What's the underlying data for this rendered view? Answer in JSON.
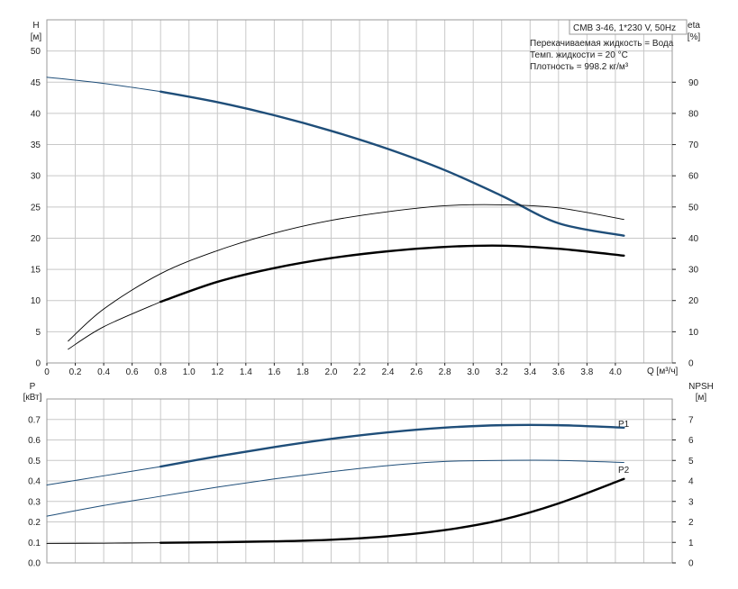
{
  "colors": {
    "blue": "#1f4e79",
    "black": "#000000",
    "grid": "#c8c8c8"
  },
  "header": {
    "info_title": "CMB 3-46, 1*230 V, 50Hz",
    "info_lines": [
      "Перекачиваемая жидкость = Вода",
      "Темп. жидкости = 20 °C",
      "Плотность = 998.2 кг/м³"
    ]
  },
  "chart_data": [
    {
      "type": "line",
      "ylabel_left": "H",
      "ylabel_left_unit": "[м]",
      "ylabel_right": "eta",
      "ylabel_right_unit": "[%]",
      "xlabel": "Q [м³/ч]",
      "xlim": [
        0,
        4.4
      ],
      "ylim_left": [
        0,
        55
      ],
      "ylim_right": [
        0,
        110
      ],
      "x_ticks": [
        "0",
        "0.2",
        "0.4",
        "0.6",
        "0.8",
        "1.0",
        "1.2",
        "1.4",
        "1.6",
        "1.8",
        "2.0",
        "2.2",
        "2.4",
        "2.6",
        "2.8",
        "3.0",
        "3.2",
        "3.4",
        "3.6",
        "3.8",
        "4.0"
      ],
      "y_ticks_left": [
        "0",
        "5",
        "10",
        "15",
        "20",
        "25",
        "30",
        "35",
        "40",
        "45",
        "50"
      ],
      "y_ticks_right": [
        "0",
        "10",
        "20",
        "30",
        "40",
        "50",
        "60",
        "70",
        "80",
        "90"
      ],
      "grid": true,
      "series": [
        {
          "axis": "left",
          "color": "blue",
          "width": 1,
          "name": "",
          "x": [
            0,
            0.4,
            0.8
          ],
          "y": [
            45.8,
            44.8,
            43.5
          ]
        },
        {
          "axis": "left",
          "color": "blue",
          "width": 2.4,
          "name": "",
          "x": [
            0.8,
            1.2,
            1.6,
            2.0,
            2.4,
            2.8,
            3.2,
            3.6,
            4.06
          ],
          "y": [
            43.5,
            41.8,
            39.7,
            37.2,
            34.3,
            30.9,
            26.8,
            22.4,
            20.4
          ]
        },
        {
          "axis": "right",
          "color": "black",
          "width": 0.9,
          "name": "",
          "x": [
            0.15,
            0.4,
            0.8,
            1.2,
            1.6,
            2.0,
            2.4,
            2.8,
            3.2,
            3.6,
            4.06
          ],
          "y": [
            7.0,
            17.3,
            28.6,
            36.0,
            41.6,
            45.7,
            48.5,
            50.4,
            50.7,
            49.7,
            46.0
          ]
        },
        {
          "axis": "left",
          "color": "black",
          "width": 0.9,
          "name": "",
          "x": [
            0.15,
            0.4,
            0.8
          ],
          "y": [
            2.2,
            5.8,
            9.8
          ]
        },
        {
          "axis": "left",
          "color": "black",
          "width": 2.4,
          "name": "",
          "x": [
            0.8,
            1.2,
            1.6,
            2.0,
            2.4,
            2.8,
            3.2,
            3.6,
            4.06
          ],
          "y": [
            9.8,
            13.0,
            15.2,
            16.8,
            17.9,
            18.6,
            18.8,
            18.3,
            17.2
          ]
        }
      ]
    },
    {
      "type": "line",
      "ylabel_left": "P",
      "ylabel_left_unit": "[кВт]",
      "ylabel_right": "NPSH",
      "ylabel_right_unit": "[м]",
      "xlim": [
        0,
        4.4
      ],
      "ylim_left": [
        0,
        0.8
      ],
      "ylim_right": [
        0,
        8
      ],
      "y_ticks_left": [
        "0.0",
        "0.1",
        "0.2",
        "0.3",
        "0.4",
        "0.5",
        "0.6",
        "0.7"
      ],
      "y_ticks_right": [
        "0",
        "1",
        "2",
        "3",
        "4",
        "5",
        "6",
        "7"
      ],
      "grid": true,
      "series": [
        {
          "axis": "left",
          "color": "blue",
          "width": 1,
          "name": "",
          "x": [
            0,
            0.4,
            0.8
          ],
          "y": [
            0.38,
            0.425,
            0.47
          ]
        },
        {
          "axis": "left",
          "color": "blue",
          "width": 2.4,
          "name": "P1",
          "x": [
            0.8,
            1.2,
            1.6,
            2.0,
            2.4,
            2.8,
            3.2,
            3.6,
            4.06
          ],
          "y": [
            0.47,
            0.52,
            0.565,
            0.605,
            0.637,
            0.66,
            0.672,
            0.672,
            0.66
          ]
        },
        {
          "axis": "left",
          "color": "blue",
          "width": 1,
          "name": "P2",
          "x": [
            0,
            0.4,
            0.8,
            1.2,
            1.6,
            2.0,
            2.4,
            2.8,
            3.2,
            3.6,
            4.06
          ],
          "y": [
            0.228,
            0.28,
            0.325,
            0.37,
            0.41,
            0.445,
            0.475,
            0.495,
            0.5,
            0.5,
            0.49
          ]
        },
        {
          "axis": "right",
          "color": "black",
          "width": 0.9,
          "name": "",
          "x": [
            0,
            0.4,
            0.8
          ],
          "y": [
            0.95,
            0.96,
            0.98
          ]
        },
        {
          "axis": "right",
          "color": "black",
          "width": 2.4,
          "name": "",
          "x": [
            0.8,
            1.2,
            1.6,
            2.0,
            2.4,
            2.8,
            3.2,
            3.6,
            4.06
          ],
          "y": [
            0.98,
            1.01,
            1.05,
            1.13,
            1.3,
            1.6,
            2.1,
            2.9,
            4.1
          ]
        }
      ]
    }
  ]
}
